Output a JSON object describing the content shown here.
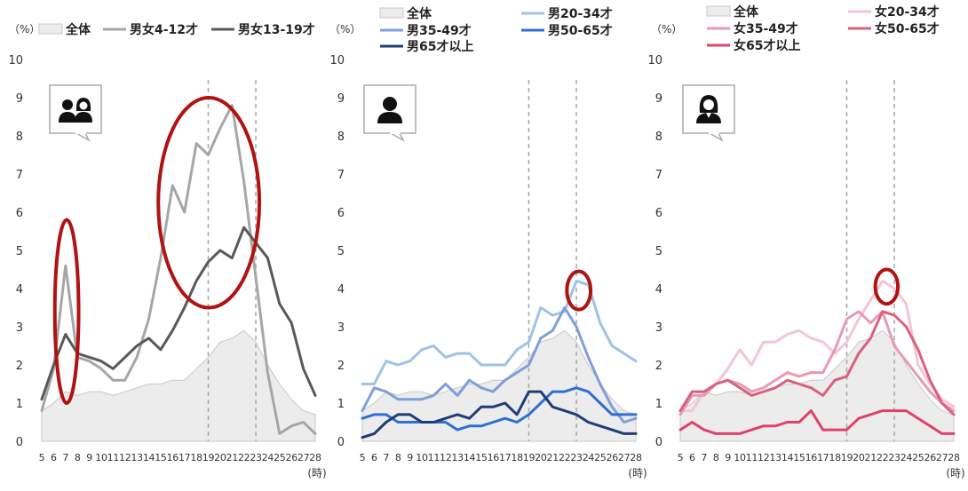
{
  "colors": {
    "area_fill": "#ececec",
    "area_stroke": "#c8c8c8",
    "vline": "#a8a8a8",
    "highlight_circle": "#b11212",
    "icon_box": "#aaaaaa"
  },
  "chart_data": [
    {
      "type": "line",
      "y_unit_label": "（%）",
      "x_unit_label": "(時)",
      "ylim": [
        0,
        10
      ],
      "yticks": [
        0,
        1,
        2,
        3,
        4,
        5,
        6,
        7,
        8,
        9,
        10
      ],
      "x": [
        5,
        6,
        7,
        8,
        9,
        10,
        11,
        12,
        13,
        14,
        15,
        16,
        17,
        18,
        19,
        20,
        21,
        22,
        23,
        24,
        25,
        26,
        27,
        28
      ],
      "reference_lines_x": [
        19,
        23
      ],
      "icon": "boy-and-girl-icon",
      "highlights": [
        {
          "x_range": [
            6.1,
            8.1
          ],
          "y_range": [
            1.0,
            5.8
          ]
        },
        {
          "x_range": [
            14.8,
            23.3
          ],
          "y_range": [
            3.5,
            9.0
          ]
        }
      ],
      "series": [
        {
          "name": "全体",
          "style": "area",
          "color": "#ececec",
          "values": [
            0.8,
            1.0,
            1.3,
            1.2,
            1.3,
            1.3,
            1.2,
            1.3,
            1.4,
            1.5,
            1.5,
            1.6,
            1.6,
            1.9,
            2.2,
            2.6,
            2.7,
            2.9,
            2.6,
            2.0,
            1.5,
            1.1,
            0.8,
            0.7
          ]
        },
        {
          "name": "男女4-12才",
          "color": "#a6a6a6",
          "values": [
            0.8,
            1.9,
            4.6,
            2.2,
            2.1,
            1.9,
            1.6,
            1.6,
            2.2,
            3.2,
            4.8,
            6.7,
            6.0,
            7.8,
            7.5,
            8.2,
            8.8,
            6.8,
            4.3,
            1.8,
            0.2,
            0.4,
            0.5,
            0.2
          ]
        },
        {
          "name": "男女13-19才",
          "color": "#595959",
          "values": [
            1.1,
            2.0,
            2.8,
            2.3,
            2.2,
            2.1,
            1.9,
            2.2,
            2.5,
            2.7,
            2.4,
            2.9,
            3.5,
            4.2,
            4.7,
            5.0,
            4.8,
            5.6,
            5.2,
            4.8,
            3.6,
            3.1,
            1.9,
            1.2
          ]
        }
      ]
    },
    {
      "type": "line",
      "y_unit_label": "（%）",
      "x_unit_label": "(時)",
      "ylim": [
        0,
        10
      ],
      "yticks": [
        0,
        1,
        2,
        3,
        4,
        5,
        6,
        7,
        8,
        9,
        10
      ],
      "x": [
        5,
        6,
        7,
        8,
        9,
        10,
        11,
        12,
        13,
        14,
        15,
        16,
        17,
        18,
        19,
        20,
        21,
        22,
        23,
        24,
        25,
        26,
        27,
        28
      ],
      "reference_lines_x": [
        19,
        23
      ],
      "icon": "man-icon",
      "highlights": [
        {
          "x_range": [
            22.2,
            24.2
          ],
          "y_range": [
            3.45,
            4.45
          ]
        }
      ],
      "series": [
        {
          "name": "全体",
          "style": "area",
          "color": "#ececec",
          "values": [
            0.8,
            1.0,
            1.3,
            1.2,
            1.3,
            1.3,
            1.2,
            1.3,
            1.4,
            1.5,
            1.5,
            1.6,
            1.6,
            1.9,
            2.2,
            2.6,
            2.7,
            2.9,
            2.6,
            2.0,
            1.5,
            1.1,
            0.8,
            0.7
          ]
        },
        {
          "name": "男20-34才",
          "color": "#9dc3e6",
          "values": [
            1.5,
            1.5,
            2.1,
            2.0,
            2.1,
            2.4,
            2.5,
            2.2,
            2.3,
            2.3,
            2.0,
            2.0,
            2.0,
            2.4,
            2.6,
            3.5,
            3.3,
            3.4,
            4.2,
            4.1,
            3.1,
            2.5,
            2.3,
            2.1
          ]
        },
        {
          "name": "男35-49才",
          "color": "#7f9fd9",
          "values": [
            0.8,
            1.4,
            1.3,
            1.1,
            1.1,
            1.1,
            1.2,
            1.5,
            1.2,
            1.6,
            1.4,
            1.3,
            1.6,
            1.8,
            2.0,
            2.7,
            2.9,
            3.5,
            3.0,
            2.2,
            1.5,
            0.9,
            0.5,
            0.6
          ]
        },
        {
          "name": "男50-65才",
          "color": "#2f6fd1",
          "values": [
            0.6,
            0.7,
            0.7,
            0.5,
            0.5,
            0.5,
            0.5,
            0.5,
            0.3,
            0.4,
            0.4,
            0.5,
            0.6,
            0.5,
            0.7,
            1.0,
            1.3,
            1.3,
            1.4,
            1.3,
            1.0,
            0.7,
            0.7,
            0.7
          ]
        },
        {
          "name": "男65才以上",
          "color": "#1f3d73",
          "values": [
            0.1,
            0.2,
            0.5,
            0.7,
            0.7,
            0.5,
            0.5,
            0.6,
            0.7,
            0.6,
            0.9,
            0.9,
            1.0,
            0.7,
            1.3,
            1.3,
            0.9,
            0.8,
            0.7,
            0.5,
            0.4,
            0.3,
            0.2,
            0.2
          ]
        }
      ]
    },
    {
      "type": "line",
      "y_unit_label": "（%）",
      "x_unit_label": "(時)",
      "ylim": [
        0,
        10
      ],
      "yticks": [
        0,
        1,
        2,
        3,
        4,
        5,
        6,
        7,
        8,
        9,
        10
      ],
      "x": [
        5,
        6,
        7,
        8,
        9,
        10,
        11,
        12,
        13,
        14,
        15,
        16,
        17,
        18,
        19,
        20,
        21,
        22,
        23,
        24,
        25,
        26,
        27,
        28
      ],
      "reference_lines_x": [
        19,
        23
      ],
      "icon": "woman-icon",
      "highlights": [
        {
          "x_range": [
            21.4,
            23.3
          ],
          "y_range": [
            3.6,
            4.5
          ]
        }
      ],
      "series": [
        {
          "name": "全体",
          "style": "area",
          "color": "#ececec",
          "values": [
            0.8,
            1.0,
            1.3,
            1.2,
            1.3,
            1.3,
            1.2,
            1.3,
            1.4,
            1.5,
            1.5,
            1.6,
            1.6,
            1.9,
            2.2,
            2.6,
            2.7,
            2.9,
            2.6,
            2.0,
            1.5,
            1.1,
            0.8,
            0.7
          ]
        },
        {
          "name": "女20-34才",
          "color": "#f4c6d2",
          "values": [
            0.8,
            0.8,
            1.3,
            1.5,
            1.9,
            2.4,
            2.0,
            2.6,
            2.6,
            2.8,
            2.9,
            2.7,
            2.6,
            2.3,
            2.6,
            3.2,
            3.7,
            4.2,
            4.0,
            3.6,
            2.0,
            1.5,
            1.1,
            0.9
          ]
        },
        {
          "name": "女35-49才",
          "color": "#e99ab3",
          "values": [
            0.7,
            1.2,
            1.2,
            1.5,
            1.6,
            1.5,
            1.3,
            1.4,
            1.6,
            1.8,
            1.7,
            1.8,
            1.8,
            2.4,
            3.2,
            3.4,
            3.1,
            3.4,
            2.5,
            2.1,
            1.7,
            1.3,
            1.0,
            0.8
          ]
        },
        {
          "name": "女50-65才",
          "color": "#d9607f",
          "values": [
            0.8,
            1.3,
            1.3,
            1.5,
            1.6,
            1.4,
            1.2,
            1.3,
            1.4,
            1.6,
            1.5,
            1.4,
            1.2,
            1.6,
            1.7,
            2.3,
            2.7,
            3.4,
            3.3,
            3.0,
            2.4,
            1.6,
            1.0,
            0.7
          ]
        },
        {
          "name": "女65才以上",
          "color": "#e0406a",
          "values": [
            0.3,
            0.5,
            0.3,
            0.2,
            0.2,
            0.2,
            0.3,
            0.4,
            0.4,
            0.5,
            0.5,
            0.8,
            0.3,
            0.3,
            0.3,
            0.6,
            0.7,
            0.8,
            0.8,
            0.8,
            0.6,
            0.4,
            0.2,
            0.2
          ]
        }
      ]
    }
  ]
}
